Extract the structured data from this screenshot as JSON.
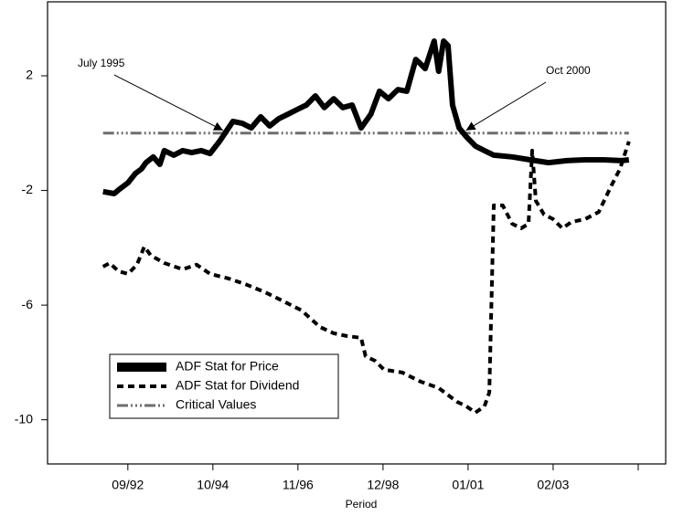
{
  "chart_data": {
    "type": "line",
    "x_label": "Period",
    "xlim": [
      1990.7,
      2005.84
    ],
    "ylim": [
      -11.54,
      4.58
    ],
    "xticks": [
      {
        "value": 1992.667,
        "label": "09/92"
      },
      {
        "value": 1994.75,
        "label": "10/94"
      },
      {
        "value": 1996.833,
        "label": "11/96"
      },
      {
        "value": 1998.917,
        "label": "12/98"
      },
      {
        "value": 2001.0,
        "label": "01/01"
      },
      {
        "value": 2003.083,
        "label": "02/03"
      },
      {
        "value": 2005.167,
        "label": null
      }
    ],
    "yticks": [
      2,
      -2,
      -6,
      -10
    ],
    "grid": false,
    "legend": "lower left",
    "series": [
      {
        "name": "ADF Stat for Price",
        "color": "#000000",
        "linewidth": 6,
        "dash": "none",
        "x": [
          1992.06,
          1992.33,
          1992.44,
          1992.67,
          1992.85,
          1993.0,
          1993.11,
          1993.29,
          1993.45,
          1993.56,
          1993.79,
          1994.01,
          1994.23,
          1994.46,
          1994.68,
          1994.91,
          1995.09,
          1995.24,
          1995.47,
          1995.69,
          1995.92,
          1996.14,
          1996.36,
          1996.59,
          1996.81,
          1997.04,
          1997.26,
          1997.48,
          1997.71,
          1997.93,
          1998.16,
          1998.38,
          1998.62,
          1998.83,
          1999.05,
          1999.28,
          1999.5,
          1999.72,
          1999.84,
          1999.95,
          2000.17,
          2000.28,
          2000.4,
          2000.51,
          2000.62,
          2000.78,
          2000.96,
          2001.18,
          2001.4,
          2001.63,
          2002.08,
          2002.52,
          2002.97,
          2003.42,
          2003.87,
          2004.32,
          2004.76,
          2004.94
        ],
        "values": [
          -2.04,
          -2.11,
          -1.98,
          -1.73,
          -1.41,
          -1.25,
          -1.03,
          -0.83,
          -1.09,
          -0.61,
          -0.77,
          -0.61,
          -0.68,
          -0.61,
          -0.71,
          -0.29,
          0.09,
          0.41,
          0.34,
          0.18,
          0.57,
          0.25,
          0.5,
          0.66,
          0.82,
          0.98,
          1.3,
          0.89,
          1.2,
          0.89,
          0.98,
          0.18,
          0.66,
          1.46,
          1.2,
          1.52,
          1.46,
          2.57,
          2.41,
          2.25,
          3.21,
          2.16,
          3.21,
          3.05,
          0.98,
          0.18,
          -0.13,
          -0.45,
          -0.61,
          -0.77,
          -0.83,
          -0.93,
          -1.03,
          -0.96,
          -0.93,
          -0.93,
          -0.96,
          -0.93
        ]
      },
      {
        "name": "ADF Stat for Dividend",
        "color": "#000000",
        "linewidth": 4,
        "dash": "7,5",
        "x": [
          1992.06,
          1992.22,
          1992.44,
          1992.67,
          1992.89,
          1993.07,
          1993.23,
          1993.56,
          1994.01,
          1994.35,
          1994.68,
          1995.13,
          1995.58,
          1996.03,
          1996.47,
          1996.92,
          1997.37,
          1997.71,
          1998.04,
          1998.38,
          1998.49,
          1998.72,
          1998.94,
          1999.39,
          1999.84,
          2000.28,
          2000.73,
          2000.96,
          2001.18,
          2001.4,
          2001.52,
          2001.63,
          2001.85,
          2002.08,
          2002.3,
          2002.48,
          2002.57,
          2002.66,
          2002.86,
          2003.08,
          2003.31,
          2003.53,
          2003.87,
          2004.2,
          2004.49,
          2004.72,
          2004.94
        ],
        "values": [
          -4.66,
          -4.53,
          -4.82,
          -4.91,
          -4.59,
          -3.96,
          -4.27,
          -4.53,
          -4.75,
          -4.59,
          -4.91,
          -5.07,
          -5.29,
          -5.55,
          -5.86,
          -6.18,
          -6.76,
          -6.98,
          -7.08,
          -7.14,
          -7.78,
          -7.94,
          -8.25,
          -8.35,
          -8.67,
          -8.89,
          -9.37,
          -9.53,
          -9.75,
          -9.53,
          -9.05,
          -2.52,
          -2.52,
          -3.16,
          -3.32,
          -3.16,
          -0.61,
          -2.36,
          -2.84,
          -3.0,
          -3.32,
          -3.1,
          -3.0,
          -2.75,
          -1.89,
          -1.25,
          -0.29
        ]
      },
      {
        "name": "Critical Values",
        "color": "#6e6e6e",
        "linewidth": 3,
        "dash": "12,3,2,3,2,3,2,3",
        "x": [
          1992.06,
          2004.94
        ],
        "values": [
          0,
          0
        ]
      }
    ],
    "annotations": [
      {
        "text": "July 1995",
        "x": 1995.0,
        "y": 0
      },
      {
        "text": "Oct 2000",
        "x": 2000.95,
        "y": 0
      }
    ]
  }
}
